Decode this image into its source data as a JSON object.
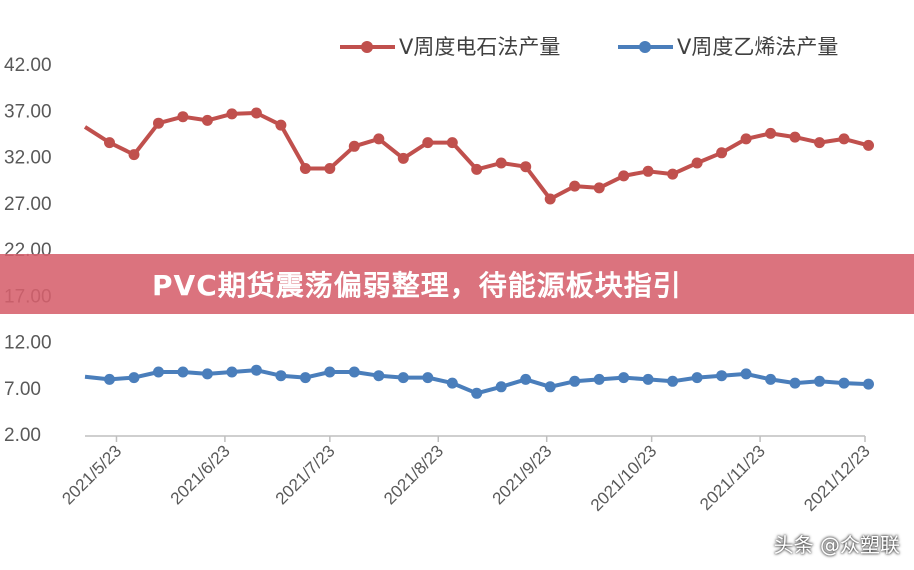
{
  "banner": {
    "headline": "PVC期货震荡偏弱整理，待能源板块指引"
  },
  "watermark": {
    "text": "头条 @众塑联"
  },
  "chart_data": {
    "type": "line",
    "title": "",
    "xlabel": "",
    "ylabel": "",
    "ylim": [
      2,
      42
    ],
    "yticks": [
      "42.00",
      "37.00",
      "32.00",
      "27.00",
      "22.00",
      "17.00",
      "12.00",
      "7.00",
      "2.00"
    ],
    "grid": false,
    "legend_position": "top",
    "x_tick_labels": [
      "2021/5/23",
      "2021/6/23",
      "2021/7/23",
      "2021/8/23",
      "2021/9/23",
      "2021/10/23",
      "2021/11/23",
      "2021/12/23"
    ],
    "x": [
      "2021/5/14",
      "2021/5/21",
      "2021/5/28",
      "2021/6/4",
      "2021/6/11",
      "2021/6/18",
      "2021/6/25",
      "2021/7/2",
      "2021/7/9",
      "2021/7/16",
      "2021/7/23",
      "2021/7/30",
      "2021/8/6",
      "2021/8/13",
      "2021/8/20",
      "2021/8/27",
      "2021/9/3",
      "2021/9/10",
      "2021/9/17",
      "2021/9/24",
      "2021/10/1",
      "2021/10/8",
      "2021/10/15",
      "2021/10/22",
      "2021/10/29",
      "2021/11/5",
      "2021/11/12",
      "2021/11/19",
      "2021/11/26",
      "2021/12/3",
      "2021/12/10",
      "2021/12/17",
      "2021/12/24"
    ],
    "series": [
      {
        "name": "V周度电石法产量",
        "color": "#c0504d",
        "values": [
          35.2,
          33.5,
          32.2,
          35.6,
          36.3,
          35.9,
          36.6,
          36.7,
          35.4,
          30.7,
          30.7,
          33.1,
          33.9,
          31.8,
          33.5,
          33.5,
          30.6,
          31.3,
          30.9,
          27.4,
          28.8,
          28.6,
          29.9,
          30.4,
          30.1,
          31.3,
          32.4,
          33.9,
          34.5,
          34.1,
          33.5,
          33.9,
          33.2
        ]
      },
      {
        "name": "V周度乙烯法产量",
        "color": "#4a7ebb",
        "values": [
          8.2,
          7.9,
          8.1,
          8.7,
          8.7,
          8.5,
          8.7,
          8.9,
          8.3,
          8.1,
          8.7,
          8.7,
          8.3,
          8.1,
          8.1,
          7.5,
          6.4,
          7.1,
          7.9,
          7.1,
          7.7,
          7.9,
          8.1,
          7.9,
          7.7,
          8.1,
          8.3,
          8.5,
          7.9,
          7.5,
          7.7,
          7.5,
          7.4
        ]
      }
    ]
  }
}
